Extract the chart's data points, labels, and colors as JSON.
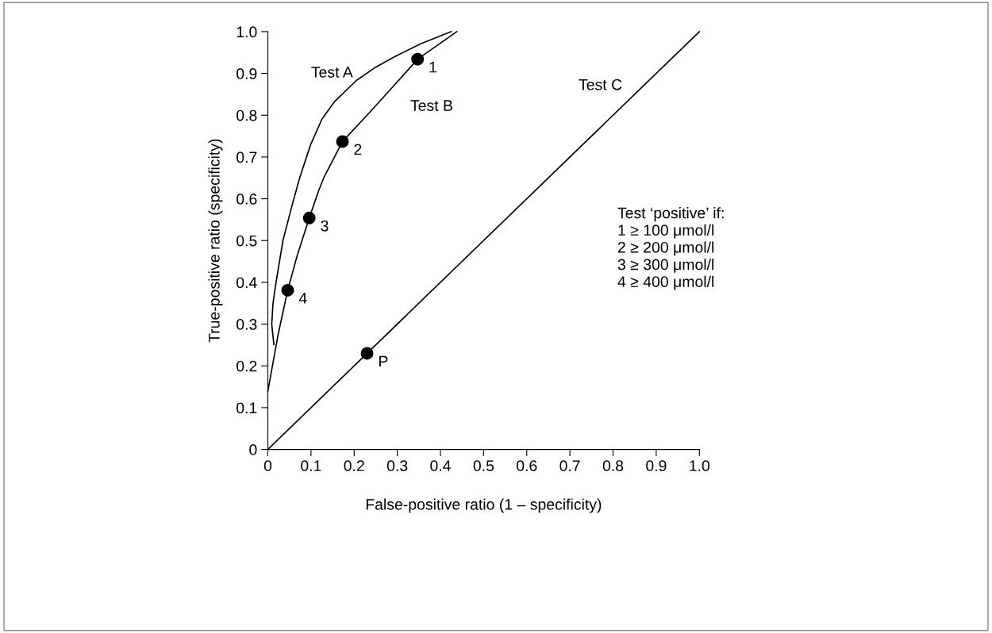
{
  "chart_data": {
    "type": "line",
    "xlabel": "False-positive ratio (1 – specificity)",
    "ylabel": "True-positive ratio (specificity)",
    "xlim": [
      0,
      1
    ],
    "ylim": [
      0,
      1
    ],
    "xticks": [
      {
        "value": 0,
        "label": "0"
      },
      0.1,
      0.2,
      0.3,
      0.4,
      0.5,
      0.6,
      0.7,
      0.8,
      0.9,
      {
        "value": 1,
        "label": "1.0"
      }
    ],
    "yticks": [
      {
        "value": 0,
        "label": "0"
      },
      0.1,
      0.2,
      0.3,
      0.4,
      0.5,
      0.6,
      0.7,
      0.8,
      0.9,
      {
        "value": 1,
        "label": "1.0"
      }
    ],
    "grid": false,
    "legend": false,
    "marker": "none",
    "line_style": "solid",
    "series": [
      {
        "name": "Test A",
        "color": "#000000",
        "x": [
          0.014,
          0.009,
          0.012,
          0.019,
          0.035,
          0.055,
          0.074,
          0.099,
          0.125,
          0.155,
          0.205,
          0.25,
          0.292,
          0.354,
          0.425
        ],
        "values": [
          0.251,
          0.3,
          0.35,
          0.4,
          0.5,
          0.58,
          0.651,
          0.729,
          0.79,
          0.833,
          0.883,
          0.915,
          0.939,
          0.971,
          1.0
        ]
      },
      {
        "name": "Test B",
        "color": "#000000",
        "x": [
          0,
          0.024,
          0.046,
          0.068,
          0.096,
          0.118,
          0.13,
          0.173,
          0.23,
          0.28,
          0.347,
          0.438
        ],
        "values": [
          0.139,
          0.276,
          0.381,
          0.464,
          0.554,
          0.62,
          0.651,
          0.737,
          0.8,
          0.857,
          0.934,
          1.0
        ]
      },
      {
        "name": "Test C",
        "color": "#000000",
        "x": [
          0,
          1
        ],
        "values": [
          0,
          1
        ]
      },
      {
        "type": "scatter",
        "color": "#000000",
        "marker": "circle",
        "x": [
          0.347,
          0.173,
          0.096,
          0.046,
          0.23
        ],
        "values": [
          0.934,
          0.737,
          0.554,
          0.381,
          0.23
        ]
      }
    ],
    "annotations": [
      {
        "text": "1",
        "x": 0.347,
        "y": 0.934
      },
      {
        "text": "2",
        "x": 0.173,
        "y": 0.737
      },
      {
        "text": "3",
        "x": 0.096,
        "y": 0.554
      },
      {
        "text": "4",
        "x": 0.046,
        "y": 0.381
      },
      {
        "text": "P",
        "x": 0.23,
        "y": 0.23
      },
      "Test ‘positive’ if:\n1 ≥ 100 μmol/l\n2 ≥ 200 μmol/l\n3 ≥ 300 μmol/l\n4 ≥ 400 μmol/l"
    ]
  }
}
